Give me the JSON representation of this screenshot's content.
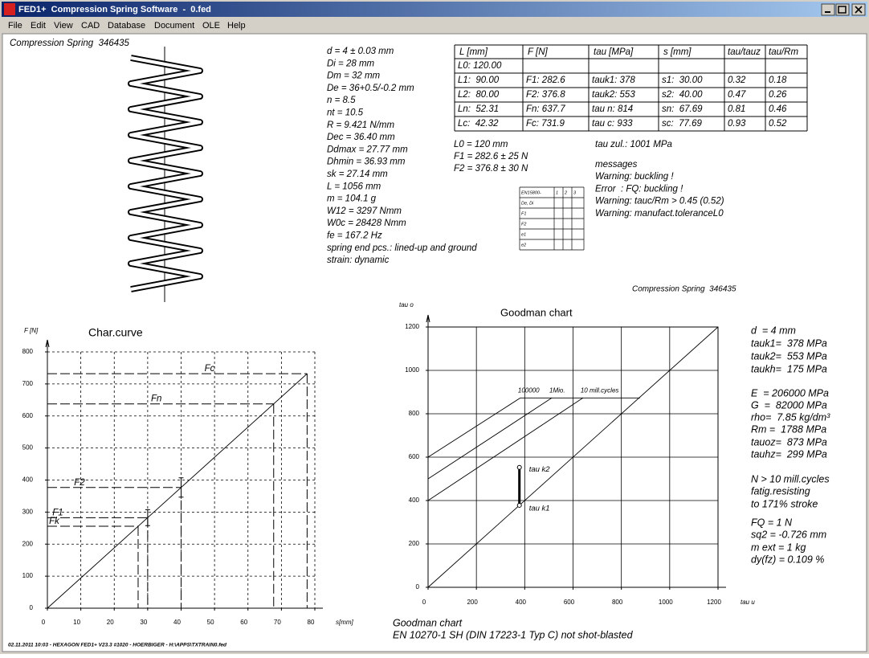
{
  "window": {
    "title": "FED1+  Compression Spring Software  -  0.fed",
    "menu": [
      "File",
      "Edit",
      "View",
      "CAD",
      "Database",
      "Document",
      "OLE",
      "Help"
    ]
  },
  "header": "Compression Spring  346435",
  "parameters": [
    "d = 4 ± 0.03 mm",
    "Di = 28 mm",
    "Dm = 32 mm",
    "De = 36+0.5/-0.2 mm",
    "n = 8.5",
    "nt = 10.5",
    "R = 9.421 N/mm",
    "Dec = 36.40 mm",
    "Ddmax = 27.77 mm",
    "Dhmin = 36.93 mm",
    "sk = 27.14 mm",
    "L = 1056 mm",
    "m = 104.1 g",
    "W12 = 3297 Nmm",
    "W0c = 28428 Nmm",
    "fe = 167.2 Hz",
    "spring end pcs.: lined-up and ground",
    "strain: dynamic"
  ],
  "table": {
    "header": [
      "L [mm]",
      "F [N]",
      "tau [MPa]",
      "s [mm]",
      "tau/tauz",
      "tau/Rm"
    ],
    "rows": [
      [
        "L0: 120.00"
      ],
      [
        "L1:  90.00",
        "F1: 282.6",
        "tauk1: 378",
        "s1:  30.00",
        "0.32",
        "0.18"
      ],
      [
        "L2:  80.00",
        "F2: 376.8",
        "tauk2: 553",
        "s2:  40.00",
        "0.47",
        "0.26"
      ],
      [
        "Ln:  52.31",
        "Fn: 637.7",
        "tau n: 814",
        "sn:  67.69",
        "0.81",
        "0.46"
      ],
      [
        "Lc:  42.32",
        "Fc: 731.9",
        "tau c: 933",
        "sc:  77.69",
        "0.93",
        "0.52"
      ]
    ]
  },
  "summary": [
    "L0 = 120 mm",
    "F1 = 282.6 ± 25 N",
    "F2 = 376.8 ± 30 N"
  ],
  "tau_zul": "tau zul.: 1001 MPa",
  "messages": {
    "title": "messages",
    "items": [
      "Warning: buckling !",
      "Error  : FQ: buckling !",
      "Warning: tauc/Rm > 0.45 (0.52)",
      "Warning: manufact.toleranceL0"
    ]
  },
  "tolerance_table": {
    "header": [
      "EN15800-",
      "1",
      "2",
      "3"
    ],
    "rows": [
      "De, Di",
      "F1",
      "F2",
      "e1",
      "e2"
    ]
  },
  "caption": "Compression Spring  346435",
  "char_curve": {
    "type": "line",
    "title": "Char.curve",
    "y_label": "F [N]",
    "x_label": "s[mm]",
    "xlim": [
      0,
      80
    ],
    "ylim": [
      0,
      800
    ],
    "xticks": [
      0,
      10,
      20,
      30,
      40,
      50,
      60,
      70,
      80
    ],
    "yticks": [
      0,
      100,
      200,
      300,
      400,
      500,
      600,
      700,
      800
    ],
    "grid": true,
    "line": {
      "x": [
        0,
        77.69
      ],
      "y": [
        0,
        731.9
      ]
    },
    "points": [
      {
        "name": "Fc",
        "s": 77.69,
        "F": 731.9
      },
      {
        "name": "Fn",
        "s": 67.69,
        "F": 637.7
      },
      {
        "name": "F2",
        "s": 40,
        "F": 376.8,
        "tolerance": 30
      },
      {
        "name": "F1",
        "s": 30,
        "F": 282.6,
        "tolerance": 25
      },
      {
        "name": "Fk",
        "s": 27.14,
        "F": 255.7
      }
    ]
  },
  "goodman": {
    "type": "line",
    "title": "Goodman chart",
    "y_label": "tau o",
    "x_label": "tau u",
    "xlim": [
      0,
      1200
    ],
    "ylim": [
      0,
      1200
    ],
    "xticks": [
      0,
      200,
      400,
      600,
      800,
      1000,
      1200
    ],
    "yticks": [
      0,
      200,
      400,
      600,
      800,
      1000,
      1200
    ],
    "grid": true,
    "curves": [
      {
        "label": "100000",
        "x": [
          0,
          382
        ],
        "y": [
          600,
          873
        ]
      },
      {
        "label": "1Mio.",
        "x": [
          0,
          512
        ],
        "y": [
          500,
          873
        ]
      },
      {
        "label": "10 mill.cycles",
        "x": [
          0,
          641
        ],
        "y": [
          400,
          873
        ]
      }
    ],
    "cap": {
      "x": [
        382,
        877
      ],
      "y": [
        873,
        873
      ]
    },
    "diagonal": {
      "x": [
        0,
        1200
      ],
      "y": [
        0,
        1200
      ]
    },
    "stress": {
      "x": 378,
      "lower": 378,
      "upper": 553,
      "lower_label": "tau k1",
      "upper_label": "tau k2"
    }
  },
  "goodman_values": [
    "d  = 4 mm",
    "tauk1=  378 MPa",
    "tauk2=  553 MPa",
    "taukh=  175 MPa",
    "E  = 206000 MPa",
    "G  =  82000 MPa",
    "rho=  7.85 kg/dm³",
    "Rm =  1788 MPa",
    "tauoz=  873 MPa",
    "tauhz=  299 MPa",
    "N > 10 mill.cycles",
    "fatig.resisting",
    "to 171% stroke",
    "FQ = 1 N",
    "sq2 = -0.726 mm",
    "m ext = 1 kg",
    "dy(fz) = 0.109 %"
  ],
  "footer": {
    "chart": "Goodman chart",
    "material": "EN 10270-1 SH (DIN 17223-1 Typ C) not shot-blasted",
    "stamp": "02.11.2011 10:03 - HEXAGON FED1+ V23.3 #1020 - HOERBIGER - H:\\APPS\\TXTRAIN0.fed"
  }
}
